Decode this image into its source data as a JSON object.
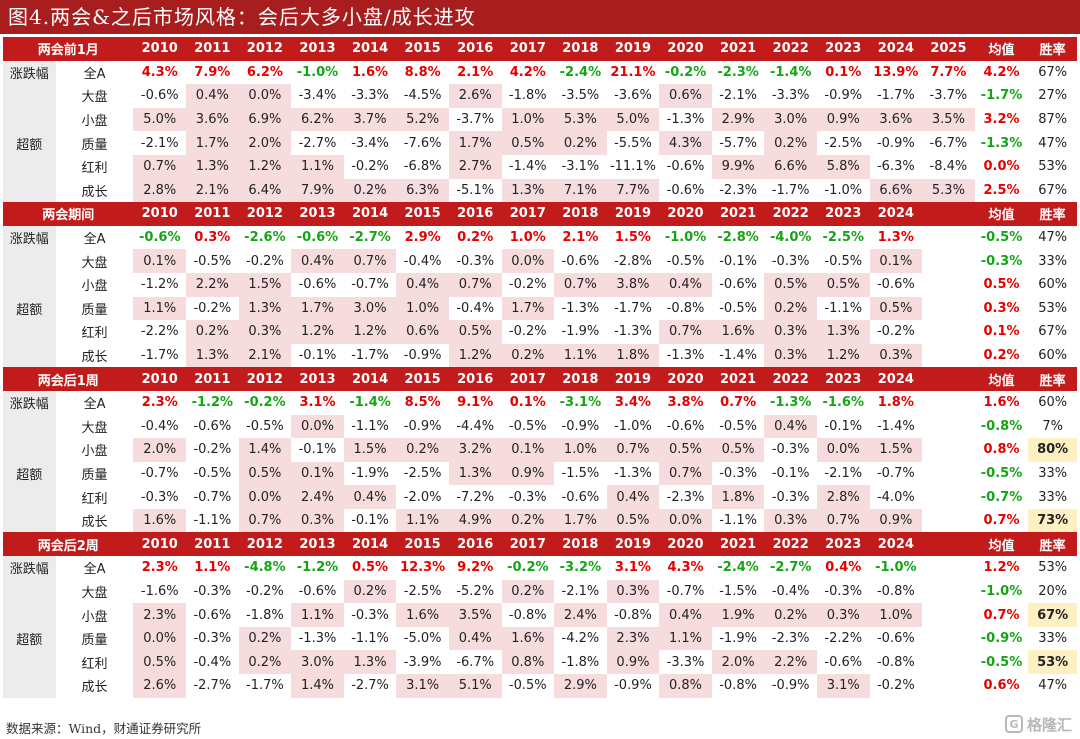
{
  "title": "图4.两会&之后市场风格：会后大多小盘/成长进攻",
  "footer": "数据来源：Wind，财通证券研究所",
  "watermark": "格隆汇",
  "colors": {
    "header_bg": "#c11b1b",
    "up": "#e60000",
    "down": "#15a415",
    "pink": "#f6dcdc",
    "yellow": "#fdf0c2"
  },
  "group_labels": {
    "change": "涨跌幅",
    "excess": "超额"
  },
  "sections": [
    {
      "name": "两会前1月",
      "years": [
        "2010",
        "2011",
        "2012",
        "2013",
        "2014",
        "2015",
        "2016",
        "2017",
        "2018",
        "2019",
        "2020",
        "2021",
        "2022",
        "2023",
        "2024",
        "2025"
      ],
      "avg_label": "均值",
      "win_label": "胜率",
      "rows": [
        {
          "label": "全A",
          "values": [
            "4.3%",
            "7.9%",
            "6.2%",
            "-1.0%",
            "1.6%",
            "8.8%",
            "2.1%",
            "4.2%",
            "-2.4%",
            "21.1%",
            "-0.2%",
            "-2.3%",
            "-1.4%",
            "0.1%",
            "13.9%",
            "7.7%"
          ],
          "avg": "4.2%",
          "win": "67%"
        },
        {
          "label": "大盘",
          "values": [
            "-0.6%",
            "0.4%",
            "0.0%",
            "-3.4%",
            "-3.3%",
            "-4.5%",
            "2.6%",
            "-1.8%",
            "-3.5%",
            "-3.6%",
            "0.6%",
            "-2.1%",
            "-3.3%",
            "-0.9%",
            "-1.7%",
            "-3.7%"
          ],
          "avg": "-1.7%",
          "win": "27%"
        },
        {
          "label": "小盘",
          "values": [
            "5.0%",
            "3.6%",
            "6.9%",
            "6.2%",
            "3.7%",
            "5.2%",
            "-3.7%",
            "1.0%",
            "5.3%",
            "5.0%",
            "-1.3%",
            "2.9%",
            "3.0%",
            "0.9%",
            "3.6%",
            "3.5%"
          ],
          "avg": "3.2%",
          "win": "87%"
        },
        {
          "label": "质量",
          "values": [
            "-2.1%",
            "1.7%",
            "2.0%",
            "-2.7%",
            "-3.4%",
            "-7.6%",
            "1.7%",
            "0.5%",
            "0.2%",
            "-5.5%",
            "4.3%",
            "-5.7%",
            "0.2%",
            "-2.5%",
            "-0.9%",
            "-6.7%"
          ],
          "avg": "-1.3%",
          "win": "47%"
        },
        {
          "label": "红利",
          "values": [
            "0.7%",
            "1.3%",
            "1.2%",
            "1.1%",
            "-0.2%",
            "-6.8%",
            "2.7%",
            "-1.4%",
            "-3.1%",
            "-11.1%",
            "-0.6%",
            "9.9%",
            "6.6%",
            "5.8%",
            "-6.3%",
            "-8.4%"
          ],
          "avg": "0.0%",
          "win": "53%"
        },
        {
          "label": "成长",
          "values": [
            "2.8%",
            "2.1%",
            "6.4%",
            "7.9%",
            "0.2%",
            "6.3%",
            "-5.1%",
            "1.3%",
            "7.1%",
            "7.7%",
            "-0.6%",
            "-2.3%",
            "-1.7%",
            "-1.0%",
            "6.6%",
            "5.3%"
          ],
          "avg": "2.5%",
          "win": "67%"
        }
      ]
    },
    {
      "name": "两会期间",
      "years": [
        "2010",
        "2011",
        "2012",
        "2013",
        "2014",
        "2015",
        "2016",
        "2017",
        "2018",
        "2019",
        "2020",
        "2021",
        "2022",
        "2023",
        "2024",
        ""
      ],
      "avg_label": "均值",
      "win_label": "胜率",
      "rows": [
        {
          "label": "全A",
          "values": [
            "-0.6%",
            "0.3%",
            "-2.6%",
            "-0.6%",
            "-2.7%",
            "2.9%",
            "0.2%",
            "1.0%",
            "2.1%",
            "1.5%",
            "-1.0%",
            "-2.8%",
            "-4.0%",
            "-2.5%",
            "1.3%",
            ""
          ],
          "avg": "-0.5%",
          "win": "47%"
        },
        {
          "label": "大盘",
          "values": [
            "0.1%",
            "-0.5%",
            "-0.2%",
            "0.4%",
            "0.7%",
            "-0.4%",
            "-0.3%",
            "0.0%",
            "-0.6%",
            "-2.8%",
            "-0.5%",
            "-0.1%",
            "-0.3%",
            "-0.5%",
            "0.1%",
            ""
          ],
          "avg": "-0.3%",
          "win": "33%"
        },
        {
          "label": "小盘",
          "values": [
            "-1.2%",
            "2.2%",
            "1.5%",
            "-0.6%",
            "-0.7%",
            "0.4%",
            "0.7%",
            "-0.2%",
            "0.7%",
            "3.8%",
            "0.4%",
            "-0.6%",
            "0.5%",
            "0.5%",
            "-0.6%",
            ""
          ],
          "avg": "0.5%",
          "win": "60%"
        },
        {
          "label": "质量",
          "values": [
            "1.1%",
            "-0.2%",
            "1.3%",
            "1.7%",
            "3.0%",
            "1.0%",
            "-0.4%",
            "1.7%",
            "-1.3%",
            "-1.7%",
            "-0.8%",
            "-0.5%",
            "0.2%",
            "-1.1%",
            "0.5%",
            ""
          ],
          "avg": "0.3%",
          "win": "53%"
        },
        {
          "label": "红利",
          "values": [
            "-2.2%",
            "0.2%",
            "0.3%",
            "1.2%",
            "1.2%",
            "0.6%",
            "0.5%",
            "-0.2%",
            "-1.9%",
            "-1.3%",
            "0.7%",
            "1.6%",
            "0.3%",
            "1.3%",
            "-0.2%",
            ""
          ],
          "avg": "0.1%",
          "win": "67%"
        },
        {
          "label": "成长",
          "values": [
            "-1.7%",
            "1.3%",
            "2.1%",
            "-0.1%",
            "-1.7%",
            "-0.9%",
            "1.2%",
            "0.2%",
            "1.1%",
            "1.8%",
            "-1.3%",
            "-1.4%",
            "0.3%",
            "1.2%",
            "0.3%",
            ""
          ],
          "avg": "0.2%",
          "win": "60%"
        }
      ]
    },
    {
      "name": "两会后1周",
      "years": [
        "2010",
        "2011",
        "2012",
        "2013",
        "2014",
        "2015",
        "2016",
        "2017",
        "2018",
        "2019",
        "2020",
        "2021",
        "2022",
        "2023",
        "2024",
        ""
      ],
      "avg_label": "均值",
      "win_label": "胜率",
      "rows": [
        {
          "label": "全A",
          "values": [
            "2.3%",
            "-1.2%",
            "-0.2%",
            "3.1%",
            "-1.4%",
            "8.5%",
            "9.1%",
            "0.1%",
            "-3.1%",
            "3.4%",
            "3.8%",
            "0.7%",
            "-1.3%",
            "-1.6%",
            "1.8%",
            ""
          ],
          "avg": "1.6%",
          "win": "60%"
        },
        {
          "label": "大盘",
          "values": [
            "-0.4%",
            "-0.6%",
            "-0.5%",
            "0.0%",
            "-1.1%",
            "-0.9%",
            "-4.4%",
            "-0.5%",
            "-0.9%",
            "-1.0%",
            "-0.6%",
            "-0.5%",
            "0.4%",
            "-0.1%",
            "-1.4%",
            ""
          ],
          "avg": "-0.8%",
          "win": "7%"
        },
        {
          "label": "小盘",
          "values": [
            "2.0%",
            "-0.2%",
            "1.4%",
            "-0.1%",
            "1.5%",
            "0.2%",
            "3.2%",
            "0.1%",
            "1.0%",
            "0.7%",
            "0.5%",
            "0.5%",
            "-0.3%",
            "0.0%",
            "1.5%",
            ""
          ],
          "avg": "0.8%",
          "win": "80%"
        },
        {
          "label": "质量",
          "values": [
            "-0.7%",
            "-0.5%",
            "0.5%",
            "0.1%",
            "-1.9%",
            "-2.5%",
            "1.3%",
            "0.9%",
            "-1.5%",
            "-1.3%",
            "0.7%",
            "-0.3%",
            "-0.1%",
            "-2.1%",
            "-0.7%",
            ""
          ],
          "avg": "-0.5%",
          "win": "33%"
        },
        {
          "label": "红利",
          "values": [
            "-0.3%",
            "-0.7%",
            "0.0%",
            "2.4%",
            "0.4%",
            "-2.0%",
            "-7.2%",
            "-0.3%",
            "-0.6%",
            "0.4%",
            "-2.3%",
            "1.8%",
            "-0.3%",
            "2.8%",
            "-4.0%",
            ""
          ],
          "avg": "-0.7%",
          "win": "33%"
        },
        {
          "label": "成长",
          "values": [
            "1.6%",
            "-1.1%",
            "0.7%",
            "0.3%",
            "-0.1%",
            "1.1%",
            "4.9%",
            "0.2%",
            "1.7%",
            "0.5%",
            "0.0%",
            "-1.1%",
            "0.3%",
            "0.7%",
            "0.9%",
            ""
          ],
          "avg": "0.7%",
          "win": "73%"
        }
      ]
    },
    {
      "name": "两会后2周",
      "years": [
        "2010",
        "2011",
        "2012",
        "2013",
        "2014",
        "2015",
        "2016",
        "2017",
        "2018",
        "2019",
        "2020",
        "2021",
        "2022",
        "2023",
        "2024",
        ""
      ],
      "avg_label": "均值",
      "win_label": "胜率",
      "rows": [
        {
          "label": "全A",
          "values": [
            "2.3%",
            "1.1%",
            "-4.8%",
            "-1.2%",
            "0.5%",
            "12.3%",
            "9.2%",
            "-0.2%",
            "-3.2%",
            "3.1%",
            "4.3%",
            "-2.4%",
            "-2.7%",
            "0.4%",
            "-1.0%",
            ""
          ],
          "avg": "1.2%",
          "win": "53%"
        },
        {
          "label": "大盘",
          "values": [
            "-1.6%",
            "-0.3%",
            "-0.2%",
            "-0.6%",
            "0.2%",
            "-2.5%",
            "-5.2%",
            "0.2%",
            "-2.1%",
            "0.3%",
            "-0.7%",
            "-1.5%",
            "-0.4%",
            "-0.3%",
            "-0.8%",
            ""
          ],
          "avg": "-1.0%",
          "win": "20%"
        },
        {
          "label": "小盘",
          "values": [
            "2.3%",
            "-0.6%",
            "-1.8%",
            "1.1%",
            "-0.3%",
            "1.6%",
            "3.5%",
            "-0.8%",
            "2.4%",
            "-0.8%",
            "0.4%",
            "1.9%",
            "0.2%",
            "0.3%",
            "1.0%",
            ""
          ],
          "avg": "0.7%",
          "win": "67%"
        },
        {
          "label": "质量",
          "values": [
            "0.0%",
            "-0.3%",
            "0.2%",
            "-1.3%",
            "-1.1%",
            "-5.0%",
            "0.4%",
            "1.6%",
            "-4.2%",
            "2.3%",
            "1.1%",
            "-1.9%",
            "-2.3%",
            "-2.2%",
            "-0.6%",
            ""
          ],
          "avg": "-0.9%",
          "win": "33%"
        },
        {
          "label": "红利",
          "values": [
            "0.5%",
            "-0.4%",
            "0.2%",
            "3.0%",
            "1.3%",
            "-3.9%",
            "-6.7%",
            "0.8%",
            "-1.8%",
            "0.9%",
            "-3.3%",
            "2.0%",
            "2.2%",
            "-0.6%",
            "-0.8%",
            ""
          ],
          "avg": "-0.5%",
          "win": "53%"
        },
        {
          "label": "成长",
          "values": [
            "2.6%",
            "-2.7%",
            "-1.7%",
            "1.4%",
            "-2.7%",
            "3.1%",
            "5.1%",
            "-0.5%",
            "2.9%",
            "-0.9%",
            "0.8%",
            "-0.8%",
            "-0.9%",
            "3.1%",
            "-0.2%",
            ""
          ],
          "avg": "0.6%",
          "win": "47%"
        }
      ]
    }
  ]
}
